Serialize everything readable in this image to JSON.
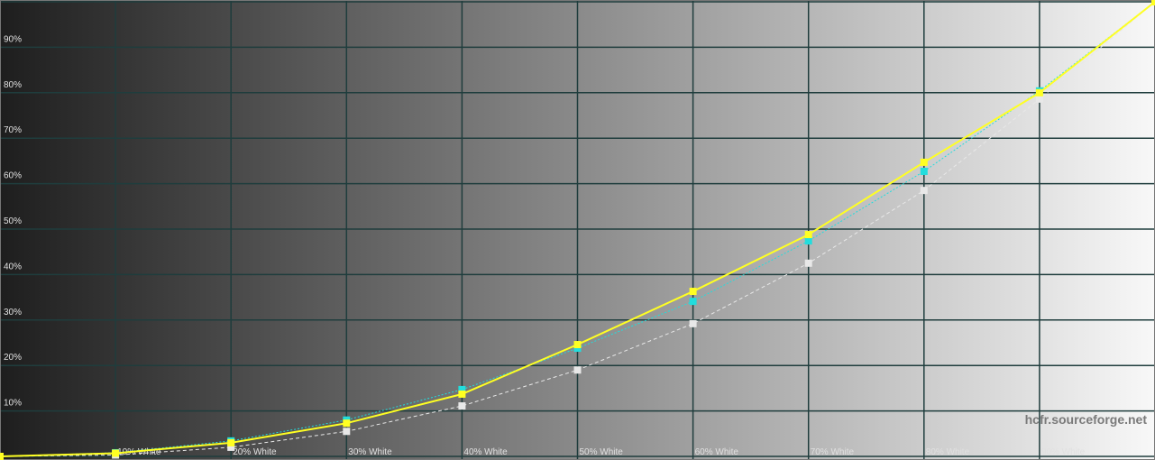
{
  "chart_data": {
    "type": "line",
    "x": [
      0,
      10,
      20,
      30,
      40,
      50,
      60,
      70,
      80,
      90,
      100
    ],
    "x_tick_labels": [
      "10% White",
      "20% White",
      "30% White",
      "40% White",
      "50% White",
      "60% White",
      "70% White",
      "80% White",
      "90% White"
    ],
    "y_tick_labels": [
      "10%",
      "20%",
      "30%",
      "40%",
      "50%",
      "60%",
      "70%",
      "80%",
      "90%"
    ],
    "ylim": [
      0,
      100
    ],
    "xlim": [
      0,
      100
    ],
    "grid": true,
    "watermark": "hcfr.sourceforge.net",
    "series": [
      {
        "style": "dashed",
        "color": "#e8e8e8",
        "values": [
          0,
          0.3,
          2.0,
          5.5,
          11.1,
          19.0,
          29.2,
          42.5,
          58.5,
          78.6,
          100
        ]
      },
      {
        "style": "dotted",
        "color": "#22dddd",
        "values": [
          0,
          0.8,
          3.4,
          8.0,
          14.7,
          23.8,
          34.1,
          47.4,
          62.7,
          80.4,
          100
        ]
      },
      {
        "style": "solid",
        "color": "#ffff22",
        "values": [
          0,
          0.7,
          3.0,
          7.3,
          13.7,
          24.6,
          36.3,
          48.8,
          64.7,
          80.0,
          100
        ]
      }
    ],
    "colors": {
      "grid": "#1f3d3d",
      "label": "#e0e0e0",
      "watermark": "#7a7a7a"
    }
  }
}
